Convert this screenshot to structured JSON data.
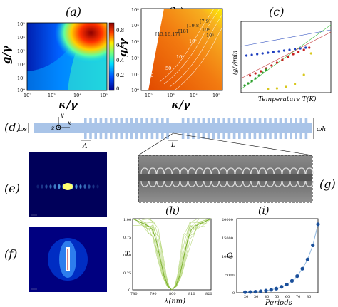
{
  "panels": {
    "a": {
      "label": "(a)",
      "ylabel": "g/γ",
      "xlabel": "κ/γ",
      "xticks": [
        "10²",
        "10³",
        "10⁴",
        "10⁵"
      ],
      "yticks": [
        "10⁰",
        "10¹",
        "10²",
        "10³",
        "10⁴",
        "10⁵"
      ],
      "cbar_ticks": [
        "0.8",
        "0.6",
        "0.4",
        "0.2",
        "0"
      ]
    },
    "b": {
      "label": "(b)",
      "ylabel": "g/γ",
      "xlabel": "κ/γ",
      "xticks": [
        "10²",
        "10³",
        "10⁴",
        "10⁵"
      ],
      "yticks": [
        "10⁰",
        "10¹",
        "10²",
        "10³",
        "10⁴",
        "10⁵"
      ],
      "contours": [
        "20",
        "50",
        "10²",
        "10³",
        "10⁴",
        "10⁵"
      ],
      "refs": [
        "[15,16,17]",
        "[18]",
        "[19,8]",
        "[7,9]"
      ]
    },
    "c": {
      "label": "(c)",
      "ylabel": "(g/γ)min",
      "xlabel": "Temperature T(K)"
    },
    "d": {
      "label": "(d)",
      "ws": "ωs",
      "wh": "ωh",
      "lambda": "Λ",
      "L": "L",
      "ax_y": "y",
      "ax_x": "x",
      "ax_z": "z"
    },
    "e": {
      "label": "(e)"
    },
    "f": {
      "label": "(f)"
    },
    "g": {
      "label": "(g)"
    },
    "h": {
      "label": "(h)",
      "ylabel": "T",
      "xlabel": "λ(nm)",
      "xticks": [
        "780",
        "790",
        "800",
        "810",
        "820"
      ],
      "yticks": [
        "0",
        "0.25",
        "0.50",
        "0.75",
        "1.00"
      ]
    },
    "i": {
      "label": "(i)",
      "ylabel": "Q",
      "xlabel": "Periods",
      "xticks": [
        "20",
        "30",
        "40",
        "50",
        "60",
        "70",
        "80"
      ],
      "yticks": [
        "0",
        "5000",
        "10000",
        "15000",
        "20000"
      ]
    }
  },
  "chart_data": [
    {
      "type": "heatmap",
      "panel": "a",
      "xlabel": "κ/γ",
      "ylabel": "g/γ",
      "xlim": [
        100,
        100000
      ],
      "ylim": [
        1,
        100000
      ],
      "log_x": true,
      "log_y": true,
      "colorbar": [
        0,
        0.9
      ]
    },
    {
      "type": "area",
      "panel": "b",
      "xlabel": "κ/γ",
      "ylabel": "g/γ",
      "xlim": [
        100,
        100000
      ],
      "ylim": [
        1,
        100000
      ],
      "log_x": true,
      "log_y": true,
      "contour_labels": [
        "20",
        "50",
        "10²",
        "10³",
        "10⁴",
        "10⁵"
      ]
    },
    {
      "type": "scatter",
      "panel": "c",
      "xlabel": "Temperature T(K)",
      "ylabel": "(g/γ)min",
      "series": [
        {
          "color": "#1f3fbf",
          "x": [
            0.06,
            0.12,
            0.18,
            0.24,
            0.3,
            0.36,
            0.42,
            0.48,
            0.54,
            0.6,
            0.66,
            0.72
          ],
          "y": [
            0.52,
            0.53,
            0.54,
            0.55,
            0.56,
            0.57,
            0.58,
            0.59,
            0.6,
            0.61,
            0.62,
            0.63
          ]
        },
        {
          "color": "#c81e1e",
          "x": [
            0.1,
            0.16,
            0.22,
            0.28,
            0.34,
            0.4,
            0.46,
            0.52,
            0.58,
            0.64,
            0.7,
            0.76
          ],
          "y": [
            0.24,
            0.27,
            0.3,
            0.34,
            0.38,
            0.42,
            0.46,
            0.5,
            0.54,
            0.57,
            0.6,
            0.63
          ]
        },
        {
          "color": "#2e9e2e",
          "x": [
            0.04,
            0.08,
            0.12,
            0.16,
            0.2,
            0.24,
            0.28
          ],
          "y": [
            0.1,
            0.13,
            0.16,
            0.2,
            0.24,
            0.28,
            0.32
          ]
        },
        {
          "color": "#d8c81e",
          "x": [
            0.3,
            0.4,
            0.5,
            0.6,
            0.7,
            0.78
          ],
          "y": [
            0.05,
            0.06,
            0.08,
            0.12,
            0.25,
            0.55
          ]
        }
      ]
    },
    {
      "type": "line",
      "panel": "h",
      "xlabel": "λ(nm)",
      "ylabel": "T",
      "xlim": [
        780,
        820
      ],
      "ylim": [
        0,
        1
      ],
      "x": [
        780,
        784,
        788,
        790,
        792,
        794,
        796,
        798,
        800,
        802,
        804,
        806,
        808,
        810,
        812,
        816,
        820
      ],
      "y": [
        1.0,
        0.95,
        0.9,
        0.85,
        0.7,
        0.45,
        0.2,
        0.05,
        0.0,
        0.05,
        0.2,
        0.45,
        0.7,
        0.85,
        0.9,
        0.95,
        1.0
      ]
    },
    {
      "type": "scatter",
      "panel": "i",
      "xlabel": "Periods",
      "ylabel": "Q",
      "xlim": [
        12,
        90
      ],
      "ylim": [
        0,
        20000
      ],
      "x": [
        20,
        25,
        30,
        35,
        40,
        45,
        50,
        55,
        60,
        65,
        70,
        75,
        80,
        85,
        90
      ],
      "y": [
        150,
        200,
        280,
        400,
        550,
        800,
        1100,
        1600,
        2200,
        3200,
        4500,
        6500,
        9000,
        12800,
        18500
      ]
    }
  ]
}
